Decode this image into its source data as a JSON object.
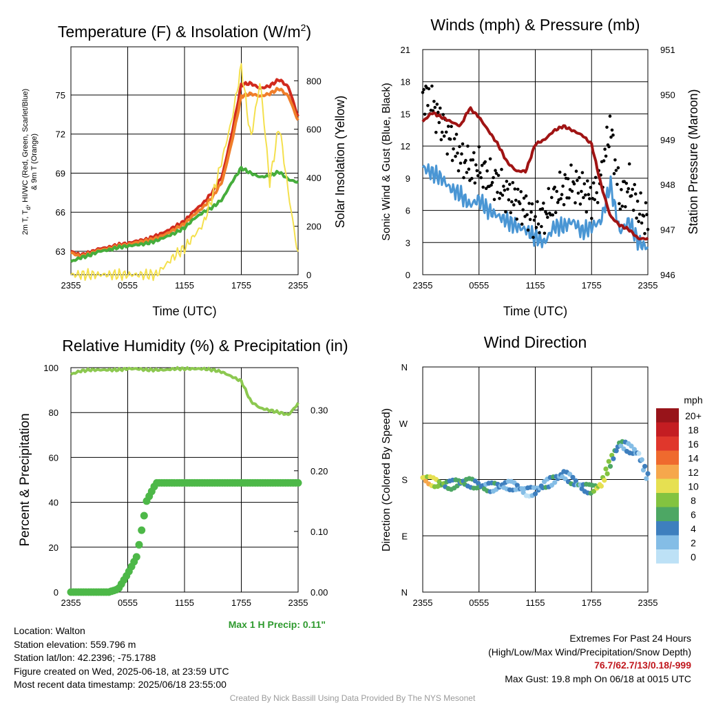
{
  "colors": {
    "red": "#d12a1e",
    "orange": "#f07e2a",
    "green": "#46ad3c",
    "yellow": "#f4e04d",
    "blue": "#4a96d4",
    "black": "#000000",
    "maroon": "#a01414",
    "rh_line": "#8cc850",
    "precip": "#4db848",
    "extremes": "#c0161c",
    "max_precip": "#2e9a2e"
  },
  "chart_data": [
    {
      "type": "line",
      "title": "Temperature (F) & Insolation (W/m",
      "title_superscript": "2",
      "title_suffix": ")",
      "xlabel": "Time (UTC)",
      "ylabel_line1": "2m T, T",
      "ylabel_sub": "d",
      "ylabel_rest": ", HI/WC (Red, Green, Scarlet/Blue)",
      "ylabel_line2": "& 9m T (Orange)",
      "y2label": "Solar Insolation (Yellow)",
      "x_tick_labels": [
        "2355",
        "0555",
        "1155",
        "1755",
        "2355"
      ],
      "ylim": [
        61.2,
        78.7
      ],
      "y_ticks": [
        "63",
        "66",
        "69",
        "72",
        "75"
      ],
      "y2lim": [
        0,
        940
      ],
      "y2_ticks": [
        "0",
        "200",
        "400",
        "600",
        "800"
      ],
      "x": [
        0,
        1,
        2,
        3,
        4,
        5,
        6,
        7,
        8,
        9,
        10,
        11,
        12,
        13,
        14,
        15,
        16,
        17,
        18,
        19,
        20,
        21,
        22,
        23,
        24
      ],
      "series": [
        {
          "color": "red",
          "values": [
            63.0,
            62.7,
            62.9,
            63.2,
            63.3,
            63.5,
            63.6,
            63.8,
            63.9,
            64.2,
            64.5,
            64.9,
            65.3,
            66.1,
            66.7,
            67.6,
            68.8,
            72.0,
            75.8,
            75.9,
            75.5,
            75.7,
            76.2,
            75.6,
            73.3
          ]
        },
        {
          "color": "orange",
          "values": [
            62.9,
            62.6,
            62.8,
            63.1,
            63.2,
            63.4,
            63.5,
            63.7,
            63.8,
            64.0,
            64.3,
            64.7,
            65.1,
            65.8,
            66.4,
            67.2,
            68.4,
            71.4,
            74.9,
            75.1,
            74.9,
            75.1,
            75.5,
            74.9,
            73.0
          ]
        },
        {
          "color": "green",
          "values": [
            62.2,
            62.5,
            62.7,
            63.0,
            63.1,
            63.3,
            63.4,
            63.5,
            63.6,
            63.8,
            64.1,
            64.4,
            64.8,
            65.5,
            66.0,
            66.4,
            67.0,
            68.3,
            69.4,
            69.0,
            68.7,
            68.8,
            69.1,
            68.5,
            68.3
          ]
        },
        {
          "color": "yellow",
          "axis": "y2",
          "values": [
            0,
            0,
            0,
            0,
            0,
            0,
            0,
            0,
            0,
            0,
            40,
            80,
            110,
            160,
            210,
            330,
            480,
            640,
            860,
            560,
            800,
            380,
            620,
            330,
            80
          ]
        }
      ]
    },
    {
      "type": "scatter",
      "title": "Winds (mph) & Pressure (mb)",
      "xlabel": "Time (UTC)",
      "ylabel": "Sonic Wind & Gust (Blue, Black)",
      "y2label": "Station Pressure (Maroon)",
      "x_tick_labels": [
        "2355",
        "0555",
        "1155",
        "1755",
        "2355"
      ],
      "ylim": [
        0,
        21
      ],
      "y_ticks": [
        "0",
        "3",
        "6",
        "9",
        "12",
        "15",
        "18",
        "21"
      ],
      "y2lim": [
        946,
        951
      ],
      "y2_ticks": [
        "946",
        "947",
        "948",
        "949",
        "950",
        "951"
      ],
      "x": [
        0,
        1,
        2,
        3,
        4,
        5,
        6,
        7,
        8,
        9,
        10,
        11,
        12,
        13,
        14,
        15,
        16,
        17,
        18,
        19,
        20,
        21,
        22,
        23,
        24
      ],
      "series": [
        {
          "color": "blue",
          "values": [
            10.0,
            9.5,
            9.0,
            8.0,
            7.5,
            6.5,
            7.0,
            6.0,
            5.5,
            5.0,
            4.5,
            4.2,
            3.5,
            3.0,
            4.5,
            4.5,
            5.0,
            4.0,
            4.5,
            5.0,
            8.5,
            4.0,
            5.0,
            3.0,
            2.5
          ]
        },
        {
          "color": "black",
          "values": [
            17.0,
            16.0,
            14.0,
            12.5,
            11.0,
            10.0,
            10.0,
            9.0,
            8.5,
            7.5,
            7.0,
            6.0,
            5.0,
            5.5,
            7.0,
            8.0,
            8.5,
            8.0,
            7.0,
            9.0,
            14.0,
            7.0,
            8.5,
            6.0,
            5.0
          ]
        },
        {
          "color": "maroon",
          "axis": "y2",
          "values": [
            949.4,
            949.6,
            949.5,
            949.4,
            949.3,
            949.7,
            949.5,
            949.2,
            948.9,
            948.5,
            948.3,
            948.3,
            948.9,
            949.0,
            949.2,
            949.3,
            949.2,
            949.1,
            948.9,
            948.0,
            947.3,
            947.1,
            947.0,
            946.8,
            946.8
          ]
        }
      ]
    },
    {
      "type": "scatter",
      "title": "Relative Humidity (%) & Precipitation (in)",
      "ylabel": "Percent & Precipitation",
      "annotation": "Max 1 H Precip: 0.11\"",
      "x_tick_labels": [
        "2355",
        "0555",
        "1155",
        "1755",
        "2355"
      ],
      "ylim": [
        0,
        100
      ],
      "y_ticks": [
        "0",
        "20",
        "40",
        "60",
        "80",
        "100"
      ],
      "y2lim": [
        0,
        0.37
      ],
      "y2_ticks": [
        "0.00",
        "0.10",
        "0.20",
        "0.30"
      ],
      "x": [
        0,
        1,
        2,
        3,
        4,
        5,
        6,
        7,
        8,
        9,
        10,
        11,
        12,
        13,
        14,
        15,
        16,
        17,
        18,
        19,
        20,
        21,
        22,
        23,
        24
      ],
      "series": [
        {
          "color": "rh_line",
          "values": [
            97,
            98.5,
            99,
            99,
            99,
            99,
            99.5,
            99.5,
            99,
            99,
            99,
            99.5,
            99.5,
            99.5,
            99.5,
            99,
            98,
            96,
            94,
            85,
            82,
            81,
            80,
            79,
            84
          ]
        },
        {
          "color": "precip",
          "axis": "y2",
          "values": [
            0,
            0,
            0,
            0,
            0,
            0.005,
            0.03,
            0.06,
            0.15,
            0.18,
            0.18,
            0.18,
            0.18,
            0.18,
            0.18,
            0.18,
            0.18,
            0.18,
            0.18,
            0.18,
            0.18,
            0.18,
            0.18,
            0.18,
            0.18
          ]
        }
      ]
    },
    {
      "type": "scatter",
      "title": "Wind Direction",
      "ylabel": "Direction (Colored By Speed)",
      "x_tick_labels": [
        "2355",
        "0555",
        "1155",
        "1755",
        "2355"
      ],
      "ylim": [
        0,
        360
      ],
      "y_ticks": [
        "N",
        "E",
        "S",
        "W",
        "N"
      ],
      "legend_title": "mph",
      "legend_labels": [
        "20+",
        "18",
        "16",
        "14",
        "12",
        "10",
        "8",
        "6",
        "4",
        "2",
        "0"
      ],
      "legend_colors": [
        "#98141a",
        "#c41d22",
        "#e0372c",
        "#ef6a2e",
        "#f6a74c",
        "#e6e051",
        "#83c340",
        "#4da764",
        "#3e7fbe",
        "#84bde6",
        "#bde1f6"
      ],
      "x": [
        0,
        1,
        2,
        3,
        4,
        5,
        6,
        7,
        8,
        9,
        10,
        11,
        12,
        13,
        14,
        15,
        16,
        17,
        18,
        19,
        20,
        21,
        22,
        23,
        24
      ],
      "series": [
        {
          "name": "Direction",
          "values": [
            183,
            180,
            175,
            170,
            172,
            173,
            172,
            171,
            170,
            168,
            165,
            160,
            165,
            175,
            178,
            185,
            176,
            170,
            168,
            172,
            205,
            235,
            230,
            225,
            185
          ],
          "speeds": [
            10,
            10,
            7,
            5,
            6,
            5,
            5,
            4,
            4,
            3,
            3,
            2,
            3,
            4,
            4,
            3,
            4,
            4,
            6,
            10,
            7,
            4,
            3,
            2,
            3
          ]
        }
      ]
    }
  ],
  "info": {
    "location": "Location: Walton",
    "elevation": "Station elevation: 559.796 m",
    "latlon": "Station lat/lon: 42.2396; -75.1788",
    "created": "Figure created on Wed, 2025-06-18, at 23:59 UTC",
    "recent": "Most recent data timestamp: 2025/06/18 23:55:00"
  },
  "extremes": {
    "title": "Extremes For Past 24 Hours",
    "subtitle": "(High/Low/Max Wind/Precipitation/Snow Depth)",
    "values": "76.7/62.7/13/0.18/-999",
    "max_gust": "Max Gust: 19.8 mph On 06/18 at 0015 UTC"
  },
  "credit": "Created By Nick Bassill Using Data Provided By The NYS Mesonet"
}
